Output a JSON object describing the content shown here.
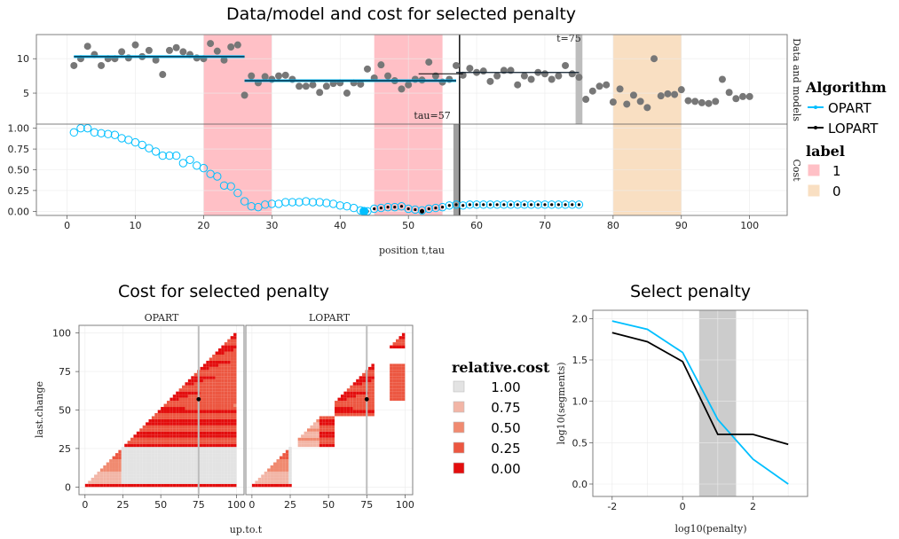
{
  "chart_data": [
    {
      "type": "scatter",
      "title": "Data/model and cost for selected penalty",
      "xlabel": "position t,tau",
      "xlim": [
        -4.5,
        105.5
      ],
      "x_ticks": [
        0,
        10,
        20,
        30,
        40,
        50,
        60,
        70,
        80,
        90,
        100
      ],
      "panels": [
        {
          "strip": "Data and models",
          "y_ticks": [
            5,
            10
          ],
          "ylim": [
            0.5,
            13.5
          ],
          "data_points": {
            "x": [
              1,
              2,
              3,
              4,
              5,
              6,
              7,
              8,
              9,
              10,
              11,
              12,
              13,
              14,
              15,
              16,
              17,
              18,
              19,
              20,
              21,
              22,
              23,
              24,
              25,
              26,
              27,
              28,
              29,
              30,
              31,
              32,
              33,
              34,
              35,
              36,
              37,
              38,
              39,
              40,
              41,
              42,
              43,
              44,
              45,
              46,
              47,
              48,
              49,
              50,
              51,
              52,
              53,
              54,
              55,
              56,
              57,
              58,
              59,
              60,
              61,
              62,
              63,
              64,
              65,
              66,
              67,
              68,
              69,
              70,
              71,
              72,
              73,
              74,
              75,
              76,
              77,
              78,
              79,
              80,
              81,
              82,
              83,
              84,
              85,
              86,
              87,
              88,
              89,
              90,
              91,
              92,
              93,
              94,
              95,
              96,
              97,
              98,
              99,
              100
            ],
            "y": [
              9.0,
              10.0,
              11.8,
              10.6,
              9.0,
              10.0,
              10.0,
              11.0,
              10.1,
              12.0,
              10.3,
              11.2,
              9.8,
              7.7,
              11.2,
              11.6,
              11.0,
              10.6,
              10.1,
              10.0,
              12.2,
              11.1,
              9.8,
              11.7,
              12.0,
              4.7,
              7.5,
              6.5,
              7.4,
              7.0,
              7.5,
              7.6,
              7.0,
              6.0,
              6.0,
              6.2,
              5.1,
              6.0,
              6.4,
              6.5,
              5.0,
              6.5,
              6.3,
              8.5,
              7.2,
              9.1,
              7.5,
              6.8,
              5.6,
              6.2,
              7.0,
              6.9,
              9.5,
              7.5,
              6.6,
              7.0,
              9.0,
              7.6,
              8.6,
              8.0,
              8.2,
              6.7,
              7.5,
              8.3,
              8.3,
              6.2,
              7.5,
              7.0,
              8.0,
              7.8,
              7.0,
              7.5,
              9.0,
              7.8,
              7.3,
              4.1,
              5.3,
              6.0,
              6.2,
              3.7,
              5.6,
              3.4,
              4.7,
              3.8,
              2.9,
              10.0,
              4.6,
              4.9,
              4.8,
              5.5,
              3.9,
              3.8,
              3.6,
              3.5,
              3.8,
              7.0,
              5.1,
              4.2,
              4.5,
              4.5
            ]
          },
          "segments": [
            {
              "x": [
                1,
                26
              ],
              "y": 10.3
            },
            {
              "x": [
                26,
                57
              ],
              "y": 6.8
            },
            {
              "x": [
                57,
                75
              ],
              "y": 8.0
            }
          ],
          "annotations": [
            {
              "text": "t=75"
            }
          ]
        },
        {
          "strip": "Cost",
          "y_ticks": [
            0.0,
            0.25,
            0.5,
            0.75,
            1.0
          ],
          "ylim": [
            -0.05,
            1.05
          ],
          "cost": {
            "x": [
              1,
              2,
              3,
              4,
              5,
              6,
              7,
              8,
              9,
              10,
              11,
              12,
              13,
              14,
              15,
              16,
              17,
              18,
              19,
              20,
              21,
              22,
              23,
              24,
              25,
              26,
              27,
              28,
              29,
              30,
              31,
              32,
              33,
              34,
              35,
              36,
              37,
              38,
              39,
              40,
              41,
              42,
              43,
              44,
              45,
              46,
              47,
              48,
              49,
              50,
              51,
              52,
              53,
              54,
              55,
              56,
              57,
              58,
              59,
              60,
              61,
              62,
              63,
              64,
              65,
              66,
              67,
              68,
              69,
              70,
              71,
              72,
              73,
              74,
              75
            ],
            "y": [
              0.95,
              1.0,
              1.0,
              0.95,
              0.94,
              0.93,
              0.92,
              0.88,
              0.86,
              0.83,
              0.8,
              0.76,
              0.72,
              0.67,
              0.67,
              0.67,
              0.58,
              0.62,
              0.55,
              0.52,
              0.45,
              0.42,
              0.31,
              0.3,
              0.22,
              0.12,
              0.06,
              0.05,
              0.08,
              0.09,
              0.09,
              0.11,
              0.11,
              0.11,
              0.12,
              0.11,
              0.11,
              0.1,
              0.09,
              0.07,
              0.06,
              0.04,
              0.01,
              0.0,
              0.03,
              0.04,
              0.05,
              0.05,
              0.06,
              0.03,
              0.02,
              0.01,
              0.03,
              0.04,
              0.05,
              0.07,
              0.08,
              0.07,
              0.08,
              0.08,
              0.08,
              0.08,
              0.08,
              0.08,
              0.08,
              0.08,
              0.08,
              0.08,
              0.08,
              0.08,
              0.08,
              0.08,
              0.08,
              0.08,
              0.08
            ]
          },
          "optimum": {
            "x": 43.5,
            "y": 0.0
          },
          "annotations": [
            {
              "text": "tau=57"
            }
          ]
        }
      ],
      "label_rects": [
        {
          "xmin": 20,
          "xmax": 30,
          "label": "1"
        },
        {
          "xmin": 45,
          "xmax": 55,
          "label": "1"
        },
        {
          "xmin": 80,
          "xmax": 90,
          "label": "0"
        }
      ],
      "selected_t": 75,
      "selected_tau": 57,
      "legend": {
        "algorithm_title": "Algorithm",
        "algorithms": [
          {
            "name": "OPART",
            "color": "#00BFFF"
          },
          {
            "name": "LOPART",
            "color": "#000000"
          }
        ],
        "label_title": "label",
        "labels": [
          {
            "name": "1",
            "color": "#FFC0C6"
          },
          {
            "name": "0",
            "color": "#F9DFC2"
          }
        ]
      }
    },
    {
      "type": "heatmap",
      "title": "Cost for selected penalty",
      "xlabel": "up.to.t",
      "ylabel": "last.change",
      "facets": [
        "OPART",
        "LOPART"
      ],
      "x_ticks": [
        0,
        25,
        50,
        75,
        100
      ],
      "y_ticks": [
        0,
        25,
        50,
        75,
        100
      ],
      "xlim": [
        -4,
        105
      ],
      "ylim": [
        -5,
        105
      ],
      "selected": {
        "up_to_t": 75,
        "last_change": 57
      },
      "legend_title": "relative.cost",
      "legend_values": [
        "1.00",
        "0.75",
        "0.50",
        "0.25",
        "0.00"
      ],
      "legend_colors": [
        "#E3E3E3",
        "#F2B5A6",
        "#F08A70",
        "#EC5741",
        "#E30D0D"
      ]
    },
    {
      "type": "line",
      "title": "Select penalty",
      "xlabel": "log10(penalty)",
      "ylabel": "log10(segments)",
      "x_ticks": [
        -2,
        0,
        2
      ],
      "y_ticks": [
        "0.0",
        "0.5",
        "1.0",
        "1.5",
        "2.0"
      ],
      "xlim": [
        -2.55,
        3.55
      ],
      "ylim": [
        -0.15,
        2.1
      ],
      "selected_range": [
        0.47,
        1.52
      ],
      "series": [
        {
          "name": "OPART",
          "color": "#00BFFF",
          "x": [
            -2,
            -1,
            0,
            1,
            2,
            3
          ],
          "y": [
            1.97,
            1.87,
            1.59,
            0.78,
            0.3,
            0.0
          ]
        },
        {
          "name": "LOPART",
          "color": "#000000",
          "x": [
            -2,
            -1,
            0,
            1,
            2,
            3
          ],
          "y": [
            1.83,
            1.72,
            1.48,
            0.6,
            0.6,
            0.48
          ]
        }
      ]
    }
  ]
}
